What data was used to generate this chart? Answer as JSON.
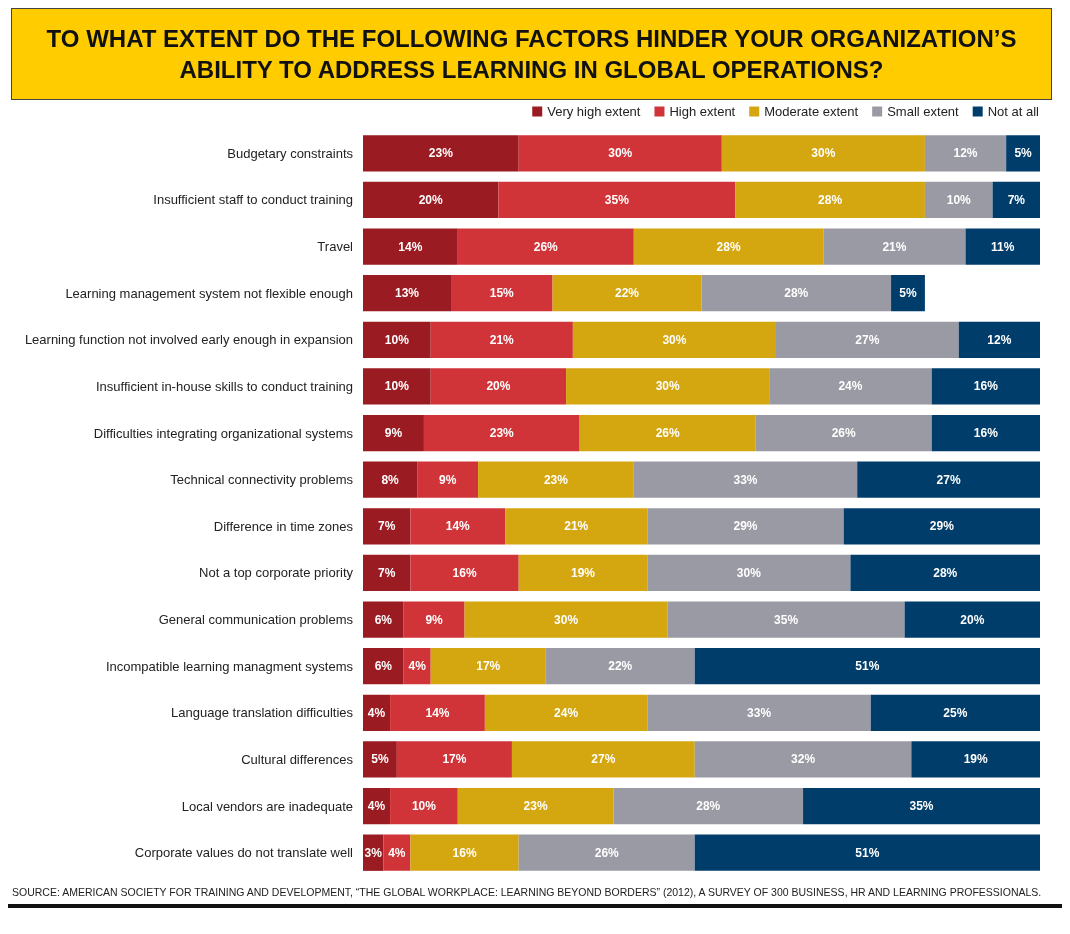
{
  "chart_data": {
    "type": "bar",
    "orientation": "horizontal",
    "stacked": true,
    "title": "TO WHAT EXTENT DO THE FOLLOWING FACTORS HINDER YOUR ORGANIZATION’S ABILITY TO ADDRESS LEARNING IN GLOBAL OPERATIONS?",
    "categories": [
      "Budgetary constraints",
      "Insufficient staff to conduct training",
      "Travel",
      "Learning management system not flexible enough",
      "Learning function not involved early enough in expansion",
      "Insufficient in-house skills to conduct training",
      "Difficulties integrating organizational systems",
      "Technical connectivity problems",
      "Difference in time zones",
      "Not a top corporate priority",
      "General communication problems",
      "Incompatible learning managment systems",
      "Language translation difficulties",
      "Cultural differences",
      "Local vendors are inadequate",
      "Corporate values do not translate well"
    ],
    "series": [
      {
        "name": "Very high extent",
        "color": "#9b1b22",
        "values": [
          23,
          20,
          14,
          13,
          10,
          10,
          9,
          8,
          7,
          7,
          6,
          6,
          4,
          5,
          4,
          3
        ],
        "value_labels": [
          "23%",
          "20%",
          "14%",
          "13%",
          "10%",
          "10%",
          "9%",
          "8%",
          "7%",
          "7%",
          "6%",
          "6%",
          "4%",
          "5%",
          "4%",
          "3%"
        ]
      },
      {
        "name": "High extent",
        "color": "#d13438",
        "values": [
          30,
          35,
          26,
          15,
          21,
          20,
          23,
          9,
          14,
          16,
          9,
          4,
          14,
          17,
          10,
          4
        ],
        "value_labels": [
          "30%",
          "35%",
          "26%",
          "15%",
          "21%",
          "20%",
          "23%",
          "9%",
          "14%",
          "16%",
          "9%",
          "4%",
          "14%",
          "17%",
          "10%",
          "4%"
        ]
      },
      {
        "name": "Moderate extent",
        "color": "#d4a60f",
        "values": [
          30,
          28,
          28,
          22,
          30,
          30,
          26,
          23,
          21,
          19,
          30,
          17,
          24,
          27,
          23,
          16
        ],
        "value_labels": [
          "30%",
          "28%",
          "28%",
          "22%",
          "30%",
          "30%",
          "26%",
          "23%",
          "21%",
          "19%",
          "30%",
          "17%",
          "24%",
          "27%",
          "23%",
          "16%"
        ]
      },
      {
        "name": "Small extent",
        "color": "#9a9aa4",
        "values": [
          12,
          10,
          21,
          28,
          27,
          24,
          26,
          33,
          29,
          30,
          35,
          22,
          33,
          32,
          28,
          26
        ],
        "value_labels": [
          "12%",
          "10%",
          "21%",
          "28%",
          "27%",
          "24%",
          "26%",
          "33%",
          "29%",
          "30%",
          "35%",
          "22%",
          "33%",
          "32%",
          "28%",
          "26%"
        ]
      },
      {
        "name": "Not at all",
        "color": "#003d6b",
        "values": [
          5,
          7,
          11,
          5,
          12,
          16,
          16,
          27,
          29,
          28,
          20,
          51,
          25,
          19,
          35,
          51
        ],
        "value_labels": [
          "5%",
          "7%",
          "11%",
          "5%",
          "12%",
          "16%",
          "16%",
          "27%",
          "29%",
          "28%",
          "20%",
          "51%",
          "25%",
          "19%",
          "35%",
          "51%"
        ]
      }
    ],
    "xlim": [
      0,
      100
    ],
    "tick_labels": "y",
    "legend": "top right",
    "annotations": [
      "SOURCE: AMERICAN SOCIETY FOR TRAINING AND DEVELOPMENT, “THE GLOBAL WORKPLACE: LEARNING BEYOND BORDERS” (2012), A SURVEY OF 300 BUSINESS, HR AND LEARNING PROFESSIONALS."
    ]
  }
}
